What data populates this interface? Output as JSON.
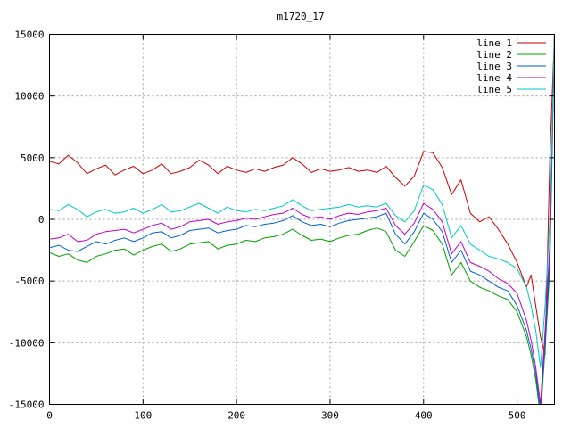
{
  "chart_data": {
    "type": "line",
    "title": "m1720_17",
    "xlabel": "",
    "ylabel": "",
    "xlim": [
      0,
      540
    ],
    "ylim": [
      -15000,
      15000
    ],
    "xticks": [
      "0",
      "100",
      "200",
      "300",
      "400",
      "500"
    ],
    "yticks": [
      "15000",
      "10000",
      "5000",
      "0",
      "-5000",
      "-10000",
      "-15000"
    ],
    "grid": true,
    "legend_position": "top-right",
    "series": [
      {
        "name": "line 1",
        "color": "#cc0000",
        "x": [
          0,
          10,
          20,
          30,
          40,
          50,
          60,
          70,
          80,
          90,
          100,
          110,
          120,
          130,
          140,
          150,
          160,
          170,
          180,
          190,
          200,
          210,
          220,
          230,
          240,
          250,
          260,
          270,
          280,
          290,
          300,
          310,
          320,
          330,
          340,
          350,
          360,
          370,
          380,
          390,
          400,
          410,
          420,
          430,
          440,
          450,
          460,
          470,
          480,
          490,
          500,
          510,
          515,
          520,
          525,
          530,
          535,
          540
        ],
        "y": [
          4700,
          4500,
          5200,
          4600,
          3700,
          4100,
          4400,
          3600,
          4000,
          4300,
          3700,
          4000,
          4500,
          3700,
          3900,
          4200,
          4800,
          4400,
          3700,
          4300,
          4000,
          3800,
          4100,
          3900,
          4200,
          4400,
          5000,
          4500,
          3800,
          4100,
          3900,
          4000,
          4200,
          3900,
          4000,
          3800,
          4300,
          3400,
          2700,
          3500,
          5500,
          5400,
          4200,
          2000,
          3200,
          500,
          -200,
          200,
          -800,
          -2000,
          -3500,
          -5500,
          -4500,
          -7000,
          -9500,
          -11000,
          5000,
          15000
        ]
      },
      {
        "name": "line 2",
        "color": "#00a000",
        "x": [
          0,
          10,
          20,
          30,
          40,
          50,
          60,
          70,
          80,
          90,
          100,
          110,
          120,
          130,
          140,
          150,
          160,
          170,
          180,
          190,
          200,
          210,
          220,
          230,
          240,
          250,
          260,
          270,
          280,
          290,
          300,
          310,
          320,
          330,
          340,
          350,
          360,
          370,
          380,
          390,
          400,
          410,
          420,
          430,
          440,
          450,
          460,
          470,
          480,
          490,
          500,
          510,
          515,
          520,
          525,
          530,
          535,
          540
        ],
        "y": [
          -2700,
          -3000,
          -2800,
          -3300,
          -3500,
          -3000,
          -2800,
          -2500,
          -2400,
          -2900,
          -2500,
          -2200,
          -2000,
          -2600,
          -2400,
          -2000,
          -1900,
          -1800,
          -2400,
          -2100,
          -2000,
          -1700,
          -1800,
          -1500,
          -1400,
          -1200,
          -800,
          -1300,
          -1700,
          -1600,
          -1800,
          -1500,
          -1300,
          -1200,
          -900,
          -700,
          -1000,
          -2500,
          -3000,
          -1800,
          -500,
          -900,
          -2000,
          -4500,
          -3500,
          -5000,
          -5500,
          -5800,
          -6200,
          -6500,
          -7500,
          -9500,
          -11000,
          -13000,
          -16000,
          -10500,
          -4000,
          15000
        ]
      },
      {
        "name": "line 3",
        "color": "#0060d0",
        "x": [
          0,
          10,
          20,
          30,
          40,
          50,
          60,
          70,
          80,
          90,
          100,
          110,
          120,
          130,
          140,
          150,
          160,
          170,
          180,
          190,
          200,
          210,
          220,
          230,
          240,
          250,
          260,
          270,
          280,
          290,
          300,
          310,
          320,
          330,
          340,
          350,
          360,
          370,
          380,
          390,
          400,
          410,
          420,
          430,
          440,
          450,
          460,
          470,
          480,
          490,
          500,
          510,
          515,
          520,
          525,
          530,
          535,
          540
        ],
        "y": [
          -2300,
          -2100,
          -2500,
          -2600,
          -2200,
          -1800,
          -2000,
          -1700,
          -1500,
          -1800,
          -1500,
          -1100,
          -1000,
          -1500,
          -1300,
          -900,
          -800,
          -700,
          -1100,
          -900,
          -800,
          -500,
          -600,
          -400,
          -300,
          -100,
          300,
          -200,
          -500,
          -400,
          -600,
          -300,
          -100,
          0,
          100,
          200,
          500,
          -1200,
          -2000,
          -1000,
          500,
          0,
          -1000,
          -3500,
          -2500,
          -4200,
          -4500,
          -5000,
          -5500,
          -5800,
          -7000,
          -9000,
          -10500,
          -12500,
          -15500,
          -10000,
          -3000,
          15000
        ]
      },
      {
        "name": "line 4",
        "color": "#c000c0",
        "x": [
          0,
          10,
          20,
          30,
          40,
          50,
          60,
          70,
          80,
          90,
          100,
          110,
          120,
          130,
          140,
          150,
          160,
          170,
          180,
          190,
          200,
          210,
          220,
          230,
          240,
          250,
          260,
          270,
          280,
          290,
          300,
          310,
          320,
          330,
          340,
          350,
          360,
          370,
          380,
          390,
          400,
          410,
          420,
          430,
          440,
          450,
          460,
          470,
          480,
          490,
          500,
          510,
          515,
          520,
          525,
          530,
          535,
          540
        ],
        "y": [
          -1600,
          -1500,
          -1200,
          -1800,
          -1700,
          -1200,
          -1000,
          -900,
          -800,
          -1100,
          -800,
          -500,
          -300,
          -800,
          -600,
          -200,
          -100,
          0,
          -400,
          -200,
          -100,
          100,
          0,
          200,
          400,
          500,
          900,
          400,
          100,
          200,
          0,
          300,
          500,
          400,
          600,
          700,
          900,
          -500,
          -1200,
          -300,
          1300,
          800,
          -200,
          -2800,
          -1800,
          -3500,
          -3800,
          -4200,
          -4800,
          -5200,
          -6000,
          -8200,
          -9800,
          -12000,
          -15000,
          -9000,
          -2000,
          15000
        ]
      },
      {
        "name": "line 5",
        "color": "#00c8c8",
        "x": [
          0,
          10,
          20,
          30,
          40,
          50,
          60,
          70,
          80,
          90,
          100,
          110,
          120,
          130,
          140,
          150,
          160,
          170,
          180,
          190,
          200,
          210,
          220,
          230,
          240,
          250,
          260,
          270,
          280,
          290,
          300,
          310,
          320,
          330,
          340,
          350,
          360,
          370,
          380,
          390,
          400,
          410,
          420,
          430,
          440,
          450,
          460,
          470,
          480,
          490,
          500,
          510,
          515,
          520,
          525,
          530,
          535,
          540
        ],
        "y": [
          800,
          700,
          1200,
          800,
          200,
          600,
          800,
          500,
          600,
          900,
          500,
          800,
          1200,
          600,
          700,
          1000,
          1300,
          900,
          500,
          1000,
          700,
          600,
          800,
          700,
          900,
          1100,
          1600,
          1100,
          700,
          800,
          900,
          1000,
          1200,
          1000,
          1100,
          1000,
          1300,
          300,
          -200,
          700,
          2800,
          2400,
          1200,
          -1500,
          -500,
          -2000,
          -2500,
          -3000,
          -3200,
          -3500,
          -4000,
          -5500,
          -7000,
          -9000,
          -12000,
          -7000,
          0,
          15000
        ]
      }
    ]
  }
}
